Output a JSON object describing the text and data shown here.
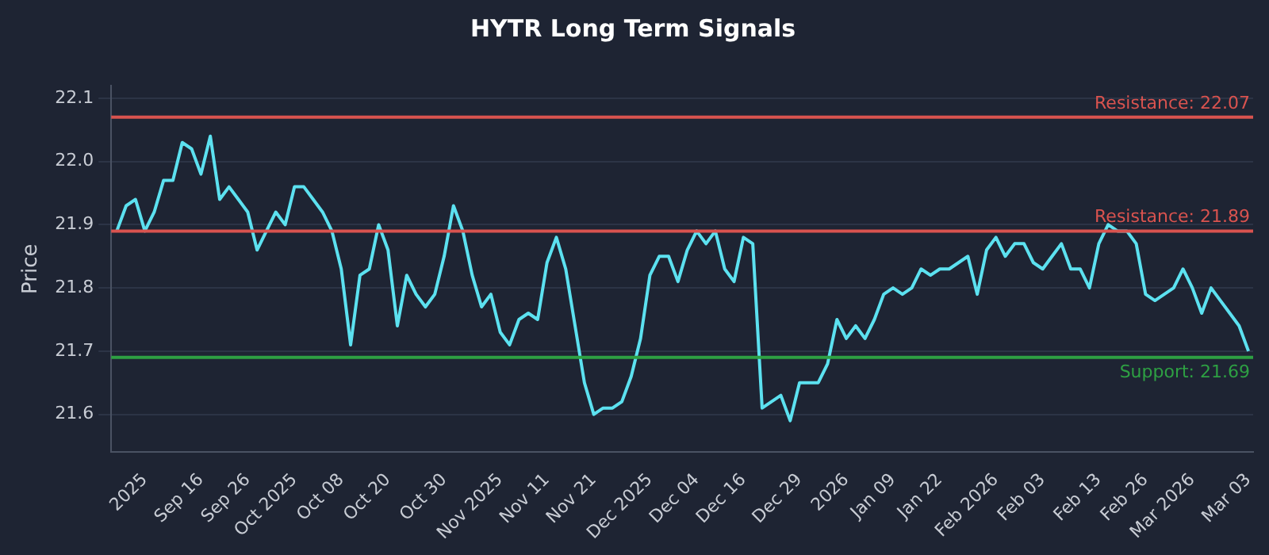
{
  "chart_data": {
    "type": "line",
    "title": "HYTR Long Term Signals",
    "ylabel": "Price",
    "categories": [
      null,
      null,
      null,
      "2025",
      null,
      null,
      null,
      null,
      null,
      "Sep 16",
      null,
      null,
      null,
      null,
      "Sep 26",
      null,
      null,
      null,
      null,
      "Oct 2025",
      null,
      null,
      null,
      null,
      "Oct 08",
      null,
      null,
      null,
      null,
      "Oct 20",
      null,
      null,
      null,
      null,
      null,
      "Oct 30",
      null,
      null,
      null,
      null,
      null,
      "Nov 2025",
      null,
      null,
      null,
      null,
      "Nov 11",
      null,
      null,
      null,
      null,
      "Nov 21",
      null,
      null,
      null,
      null,
      null,
      "Dec 2025",
      null,
      null,
      null,
      null,
      "Dec 04",
      null,
      null,
      null,
      null,
      "Dec 16",
      null,
      null,
      null,
      null,
      null,
      "Dec 29",
      null,
      null,
      null,
      null,
      "2026",
      null,
      null,
      null,
      null,
      "Jan 09",
      null,
      null,
      null,
      null,
      "Jan 22",
      null,
      null,
      null,
      null,
      null,
      "Feb 2026",
      null,
      null,
      null,
      null,
      "Feb 03",
      null,
      null,
      null,
      null,
      null,
      "Feb 13",
      null,
      null,
      null,
      null,
      "Feb 26",
      null,
      null,
      null,
      null,
      "Mar 2026",
      null,
      null,
      null,
      null,
      null,
      "Mar 03"
    ],
    "series": [
      {
        "color": "#5ce1f0",
        "values": [
          21.89,
          21.93,
          21.94,
          21.89,
          21.92,
          21.97,
          21.97,
          22.03,
          22.02,
          21.98,
          22.04,
          21.94,
          21.96,
          21.94,
          21.92,
          21.86,
          21.89,
          21.92,
          21.9,
          21.96,
          21.96,
          21.94,
          21.92,
          21.89,
          21.83,
          21.71,
          21.82,
          21.83,
          21.9,
          21.86,
          21.74,
          21.82,
          21.79,
          21.77,
          21.79,
          21.85,
          21.93,
          21.89,
          21.82,
          21.77,
          21.79,
          21.73,
          21.71,
          21.75,
          21.76,
          21.75,
          21.84,
          21.88,
          21.83,
          21.74,
          21.65,
          21.6,
          21.61,
          21.61,
          21.62,
          21.66,
          21.72,
          21.82,
          21.85,
          21.85,
          21.81,
          21.86,
          21.89,
          21.87,
          21.89,
          21.83,
          21.81,
          21.88,
          21.87,
          21.61,
          21.62,
          21.63,
          21.59,
          21.65,
          21.65,
          21.65,
          21.68,
          21.75,
          21.72,
          21.74,
          21.72,
          21.75,
          21.79,
          21.8,
          21.79,
          21.8,
          21.83,
          21.82,
          21.83,
          21.83,
          21.84,
          21.85,
          21.79,
          21.86,
          21.88,
          21.85,
          21.87,
          21.87,
          21.84,
          21.83,
          21.85,
          21.87,
          21.83,
          21.83,
          21.8,
          21.87,
          21.9,
          21.89,
          21.89,
          21.87,
          21.79,
          21.78,
          21.79,
          21.8,
          21.83,
          21.8,
          21.76,
          21.8,
          21.78,
          21.76,
          21.74,
          21.7
        ]
      }
    ],
    "ylim": [
      21.54,
      22.12
    ],
    "yticks": [
      21.6,
      21.7,
      21.8,
      21.9,
      {
        "value": 22.0,
        "label": "22.0"
      },
      22.1
    ],
    "grid": "y",
    "legend": false,
    "marker": "none",
    "line_style": "solid",
    "ref_lines": [
      {
        "axis": "y",
        "value": 22.07,
        "label": "Resistance: 22.07",
        "color": "#d9534f"
      },
      {
        "axis": "y",
        "value": 21.89,
        "label": "Resistance: 21.89",
        "color": "#d9534f"
      },
      {
        "axis": "y",
        "value": 21.69,
        "label": "Support: 21.69",
        "color": "#2ea043"
      }
    ]
  }
}
